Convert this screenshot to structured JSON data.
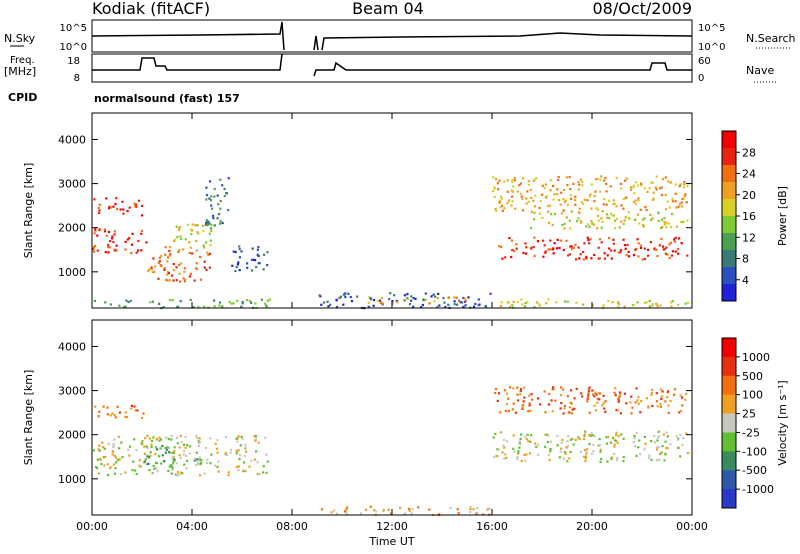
{
  "header": {
    "station": "Kodiak (fitACF)",
    "beam": "Beam 04",
    "date": "08/Oct/2009"
  },
  "strip": {
    "nsky_label": "N.Sky",
    "nsky_ticks": [
      "10^5",
      "10^0"
    ],
    "nsearch_label": "N.Search",
    "nsearch_ticks": [
      "10^5",
      "10^0"
    ],
    "freq_label": "Freq.",
    "freq_unit": "[MHz]",
    "freq_ticks": [
      "18",
      "8"
    ],
    "nave_label": "Nave",
    "nave_ticks": [
      "60",
      "0"
    ],
    "cpid_label": "CPID",
    "cpid_text": "normalsound (fast) 157"
  },
  "chart_data": [
    {
      "type": "heatmap",
      "name": "power",
      "ylabel": "Slant Range [km]",
      "yticks": [
        1000,
        2000,
        3000,
        4000
      ],
      "ylim": [
        180,
        4600
      ],
      "xlim": [
        0,
        24
      ],
      "xticks": [
        "00:00",
        "04:00",
        "08:00",
        "12:00",
        "16:00",
        "20:00",
        "00:00"
      ],
      "colorbar": {
        "label": "Power [dB]",
        "ticks": [
          "28",
          "24",
          "20",
          "16",
          "12",
          "8",
          "4"
        ],
        "colors": [
          "#1e22d8",
          "#2a50c0",
          "#3a7b78",
          "#4aa050",
          "#7ccb30",
          "#d8d028",
          "#f0a020",
          "#f07010",
          "#e82410",
          "#f00000"
        ]
      },
      "regions": [
        {
          "t": [
            0.0,
            2.2
          ],
          "r": [
            1400,
            2000
          ],
          "level": 8
        },
        {
          "t": [
            0.0,
            2.0
          ],
          "r": [
            2300,
            2700
          ],
          "level": 8
        },
        {
          "t": [
            2.2,
            4.8
          ],
          "r": [
            800,
            1600
          ],
          "level": 7
        },
        {
          "t": [
            3.0,
            4.8
          ],
          "r": [
            1600,
            2100
          ],
          "level": 5
        },
        {
          "t": [
            4.5,
            5.5
          ],
          "r": [
            2000,
            3200
          ],
          "level": 2
        },
        {
          "t": [
            5.5,
            7.0
          ],
          "r": [
            1000,
            1600
          ],
          "level": 1
        },
        {
          "t": [
            0.0,
            7.2
          ],
          "r": [
            200,
            400
          ],
          "level": 3
        },
        {
          "t": [
            9.0,
            16.0
          ],
          "r": [
            200,
            550
          ],
          "level": 1
        },
        {
          "t": [
            11.0,
            15.0
          ],
          "r": [
            300,
            450
          ],
          "level": 6
        },
        {
          "t": [
            16.0,
            23.8
          ],
          "r": [
            2400,
            3200
          ],
          "level": 6
        },
        {
          "t": [
            16.2,
            23.8
          ],
          "r": [
            1300,
            1800
          ],
          "level": 8
        },
        {
          "t": [
            17.5,
            23.8
          ],
          "r": [
            2000,
            2400
          ],
          "level": 5
        },
        {
          "t": [
            16.0,
            23.8
          ],
          "r": [
            200,
            400
          ],
          "level": 5
        }
      ]
    },
    {
      "type": "heatmap",
      "name": "velocity",
      "ylabel": "Slant Range [km]",
      "yticks": [
        1000,
        2000,
        3000,
        4000
      ],
      "ylim": [
        180,
        4600
      ],
      "xlim": [
        0,
        24
      ],
      "xticks": [
        "00:00",
        "04:00",
        "08:00",
        "12:00",
        "16:00",
        "20:00",
        "00:00"
      ],
      "xlabel": "Time UT",
      "colorbar": {
        "label": "Velocity [m s⁻¹]",
        "ticks": [
          "1000",
          "500",
          "100",
          "25",
          "-25",
          "-100",
          "-500",
          "-1000"
        ],
        "colors": [
          "#2a3ac8",
          "#2a5aa8",
          "#3a8a60",
          "#62c030",
          "#c8c8c0",
          "#f0a020",
          "#f07010",
          "#e83010",
          "#f00000"
        ]
      },
      "regions": [
        {
          "t": [
            0.0,
            2.2
          ],
          "r": [
            2400,
            2700
          ],
          "level": 6
        },
        {
          "t": [
            0.0,
            7.0
          ],
          "r": [
            1100,
            2000
          ],
          "level": 4
        },
        {
          "t": [
            16.0,
            23.8
          ],
          "r": [
            1400,
            2100
          ],
          "level": 4
        },
        {
          "t": [
            16.0,
            23.8
          ],
          "r": [
            2500,
            3100
          ],
          "level": 6
        },
        {
          "t": [
            9.0,
            16.0
          ],
          "r": [
            200,
            400
          ],
          "level": 5
        },
        {
          "t": [
            2.0,
            4.5
          ],
          "r": [
            1300,
            1800
          ],
          "level": 3
        }
      ]
    }
  ]
}
